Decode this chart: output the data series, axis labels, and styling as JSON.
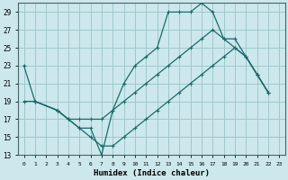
{
  "xlabel": "Humidex (Indice chaleur)",
  "bg_color": "#cce8ec",
  "grid_color": "#a0c8cc",
  "line_color": "#1a6b6b",
  "xlim": [
    -0.5,
    23.5
  ],
  "ylim": [
    13,
    30
  ],
  "yticks": [
    13,
    15,
    17,
    19,
    21,
    23,
    25,
    27,
    29
  ],
  "xticks": [
    0,
    1,
    2,
    3,
    4,
    5,
    6,
    7,
    8,
    9,
    10,
    11,
    12,
    13,
    14,
    15,
    16,
    17,
    18,
    19,
    20,
    21,
    22,
    23
  ],
  "line1_x": [
    0,
    1,
    3,
    4,
    5,
    6,
    7,
    8,
    9,
    10,
    11,
    12,
    13,
    14,
    15,
    16,
    17,
    18,
    19,
    20,
    21,
    22
  ],
  "line1_y": [
    23,
    19,
    18,
    17,
    16,
    16,
    13,
    18,
    21,
    23,
    24,
    25,
    29,
    29,
    29,
    30,
    29,
    26,
    26,
    24,
    22,
    20
  ],
  "line2_x": [
    0,
    1,
    3,
    4,
    5,
    6,
    7,
    8,
    9,
    10,
    11,
    12,
    13,
    14,
    15,
    16,
    17,
    18,
    19,
    20,
    21,
    22
  ],
  "line2_y": [
    19,
    19,
    18,
    17,
    17,
    17,
    17,
    18,
    19,
    20,
    21,
    22,
    23,
    24,
    25,
    26,
    27,
    26,
    25,
    24,
    22,
    20
  ],
  "line3_x": [
    1,
    3,
    4,
    5,
    6,
    7,
    8,
    9,
    10,
    11,
    12,
    13,
    14,
    15,
    16,
    17,
    18,
    19,
    20,
    21,
    22
  ],
  "line3_y": [
    19,
    18,
    17,
    16,
    15,
    14,
    14,
    15,
    16,
    17,
    18,
    19,
    20,
    21,
    22,
    23,
    24,
    25,
    24,
    22,
    20
  ]
}
